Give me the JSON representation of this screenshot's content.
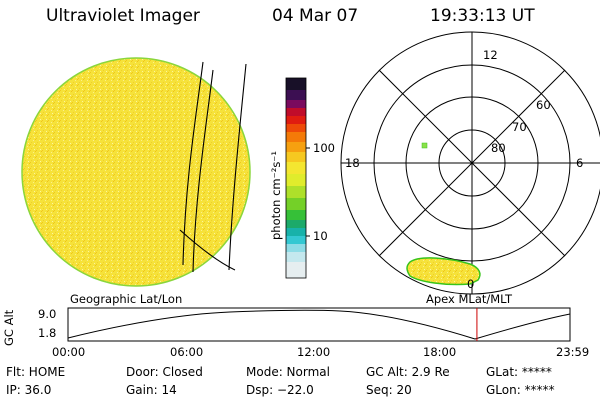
{
  "header": {
    "title": "Ultraviolet Imager",
    "date": "04 Mar 07",
    "time": "19:33:13 UT"
  },
  "colorbar": {
    "unit_label": "photon cm⁻²s⁻¹",
    "ticks": [
      "100",
      "10"
    ]
  },
  "left_panel": {
    "caption": "Geographic Lat/Lon"
  },
  "right_panel": {
    "caption": "Apex MLat/MLT",
    "mlt_labels": [
      "12",
      "18",
      "6",
      "0"
    ],
    "mlat_labels": [
      "60",
      "70",
      "80"
    ]
  },
  "altitude_plot": {
    "ylabel": "GC Alt",
    "yticks": [
      "9.0",
      "1.8"
    ],
    "xticks": [
      "00:00",
      "06:00",
      "12:00",
      "18:00",
      "23:59"
    ],
    "marker_time_hours": 19.55,
    "marker_color": "#cc0000"
  },
  "status": {
    "flt": "Flt: HOME",
    "door": "Door: Closed",
    "mode": "Mode: Normal",
    "gc_alt": "GC Alt: 2.9 Re",
    "glat": "GLat: *****",
    "ip": "IP: 36.0",
    "gain": "Gain: 14",
    "dsp": "Dsp:  −22.0",
    "seq": "Seq: 20",
    "glon": "GLon: *****"
  },
  "colors": {
    "disk_fill": "#f6e23a",
    "disk_edge": "#7fd23a",
    "aurora_fill": "#f6e23a",
    "aurora_edge": "#36c41a",
    "spot": "#8be04a"
  }
}
